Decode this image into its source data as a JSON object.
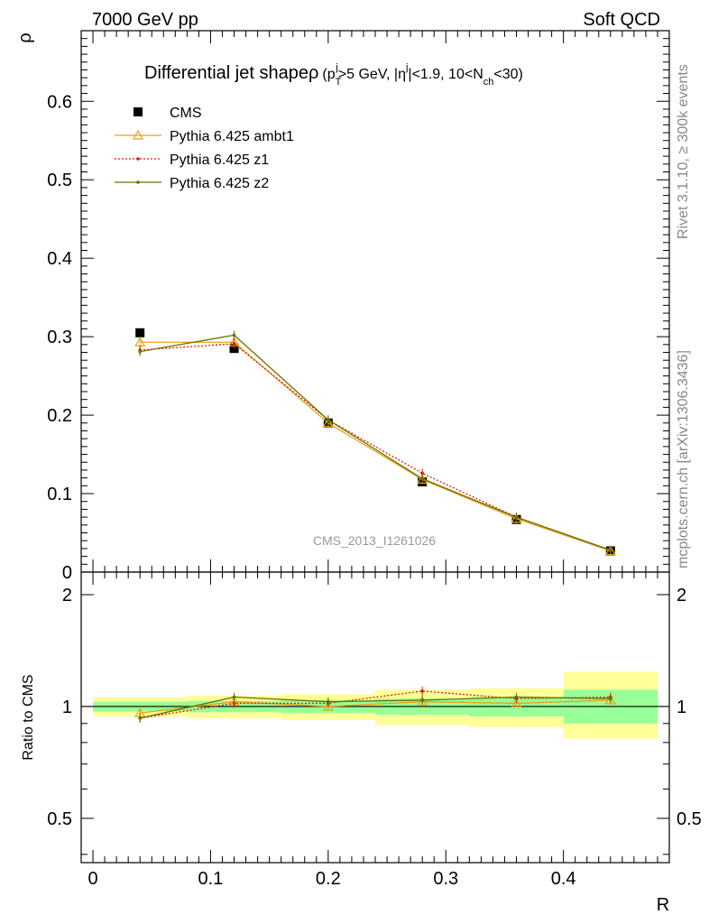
{
  "header": {
    "left": "7000 GeV pp",
    "right": "Soft QCD"
  },
  "side": {
    "rivet": "Rivet 3.1.10, ≥ 300k events",
    "mcplots": "mcplots.cern.ch [arXiv:1306.3436]"
  },
  "watermark": "CMS_2013_I1261026",
  "chart_data": {
    "type": "line",
    "title": "Differential jet shape ρ (p_T^j > 5 GeV, |η^j| < 1.9, 10 < N_ch < 30)",
    "title_parts": {
      "main": "Differential jet shape",
      "rho": "ρ",
      "open": "(p",
      "sub_T": "T",
      "sup_j1": "j",
      "pt_cut": ">5 GeV, |η",
      "sup_j2": "j",
      "eta_cut": "|<1.9, 10<N",
      "sub_ch": "ch",
      "close": "<30)"
    },
    "xlabel": "R",
    "ylabel": "ρ",
    "ratio_ylabel": "Ratio to CMS",
    "xlim": [
      -0.01,
      0.49
    ],
    "ylim": [
      0,
      0.69
    ],
    "ratio_ylim": [
      0.38,
      2.3
    ],
    "x": [
      0.04,
      0.12,
      0.2,
      0.28,
      0.36,
      0.44
    ],
    "x_ticks": [
      "0",
      "0.1",
      "0.2",
      "0.3",
      "0.4"
    ],
    "y_ticks": [
      "0",
      "0.1",
      "0.2",
      "0.3",
      "0.4",
      "0.5",
      "0.6"
    ],
    "ratio_ticks": [
      "0.5",
      "1",
      "2"
    ],
    "series": [
      {
        "name": "CMS",
        "values": [
          0.305,
          0.285,
          0.19,
          0.115,
          0.067,
          0.027
        ],
        "color": "#000000",
        "style": "marker-square"
      },
      {
        "name": "Pythia 6.425 ambt1",
        "values": [
          0.293,
          0.293,
          0.19,
          0.118,
          0.068,
          0.027
        ],
        "color": "#e8a317",
        "style": "solid-triangle",
        "ratio": [
          0.96,
          1.03,
          1.0,
          1.03,
          1.02,
          1.04
        ]
      },
      {
        "name": "Pythia 6.425 z1",
        "values": [
          0.283,
          0.291,
          0.194,
          0.126,
          0.07,
          0.028
        ],
        "color": "#dd2200",
        "style": "dotted-dot",
        "ratio": [
          0.93,
          1.02,
          1.02,
          1.1,
          1.05,
          1.06
        ]
      },
      {
        "name": "Pythia 6.425 z2",
        "values": [
          0.281,
          0.302,
          0.194,
          0.119,
          0.07,
          0.028
        ],
        "color": "#6b7000",
        "style": "solid-dot",
        "ratio": [
          0.93,
          1.06,
          1.03,
          1.04,
          1.06,
          1.05
        ]
      }
    ],
    "ratio_bands": {
      "bins": [
        [
          0.0,
          0.08
        ],
        [
          0.08,
          0.16
        ],
        [
          0.16,
          0.24
        ],
        [
          0.24,
          0.32
        ],
        [
          0.32,
          0.4
        ],
        [
          0.4,
          0.48
        ]
      ],
      "yellow": [
        [
          0.94,
          1.06
        ],
        [
          0.93,
          1.07
        ],
        [
          0.92,
          1.08
        ],
        [
          0.89,
          1.11
        ],
        [
          0.88,
          1.12
        ],
        [
          0.82,
          1.24
        ]
      ],
      "green": [
        [
          0.97,
          1.03
        ],
        [
          0.965,
          1.035
        ],
        [
          0.96,
          1.04
        ],
        [
          0.95,
          1.05
        ],
        [
          0.94,
          1.06
        ],
        [
          0.9,
          1.11
        ]
      ],
      "colors": {
        "yellow": "#ffff99",
        "green": "#99ff99"
      }
    },
    "legend_position": "top-left",
    "grid": false
  }
}
